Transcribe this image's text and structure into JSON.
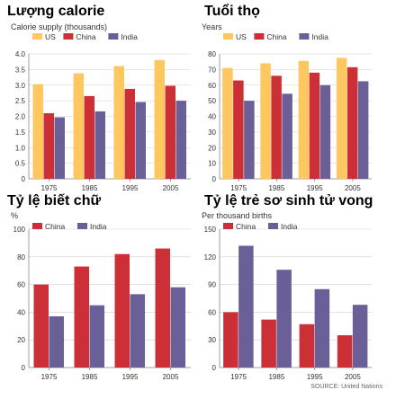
{
  "colors": {
    "US": "#ffc760",
    "China": "#cc2f35",
    "India": "#6a6097"
  },
  "source": "SOURCE: United Nations",
  "chart_data": [
    {
      "type": "bar",
      "title": "Lượng calorie",
      "ylabel": "Calorie supply (thousands)",
      "categories": [
        "1975",
        "1985",
        "1995",
        "2005"
      ],
      "ylim": [
        0,
        4.0
      ],
      "yticks": [
        "0",
        "0.5",
        "1.0",
        "1.5",
        "2.0",
        "2.5",
        "3.0",
        "3.5",
        "4.0"
      ],
      "legend": "top",
      "series": [
        {
          "name": "US",
          "values": [
            3.03,
            3.38,
            3.61,
            3.8
          ]
        },
        {
          "name": "China",
          "values": [
            2.1,
            2.65,
            2.88,
            2.98
          ]
        },
        {
          "name": "India",
          "values": [
            1.97,
            2.16,
            2.46,
            2.5
          ]
        }
      ]
    },
    {
      "type": "bar",
      "title": "Tuổi thọ",
      "ylabel": "Years",
      "categories": [
        "1975",
        "1985",
        "1995",
        "2005"
      ],
      "ylim": [
        0,
        80
      ],
      "yticks": [
        "0",
        "10",
        "20",
        "30",
        "40",
        "50",
        "60",
        "70",
        "80"
      ],
      "legend": "top",
      "series": [
        {
          "name": "US",
          "values": [
            71,
            74,
            75.5,
            77.5
          ]
        },
        {
          "name": "China",
          "values": [
            63,
            66,
            68,
            71.5
          ]
        },
        {
          "name": "India",
          "values": [
            50,
            54.5,
            60,
            62.5
          ]
        }
      ]
    },
    {
      "type": "bar",
      "title": "Tỷ lệ biết chữ",
      "ylabel": "%",
      "categories": [
        "1975",
        "1985",
        "1995",
        "2005"
      ],
      "ylim": [
        0,
        100
      ],
      "yticks": [
        "0",
        "20",
        "40",
        "60",
        "80",
        "100"
      ],
      "legend": "top",
      "series": [
        {
          "name": "China",
          "values": [
            60,
            73,
            82,
            86
          ]
        },
        {
          "name": "India",
          "values": [
            37,
            45,
            53,
            58
          ]
        }
      ]
    },
    {
      "type": "bar",
      "title": "Tỷ lệ trẻ sơ sinh tử vong",
      "ylabel": "Per thousand births",
      "categories": [
        "1975",
        "1985",
        "1995",
        "2005"
      ],
      "ylim": [
        0,
        150
      ],
      "yticks": [
        "0",
        "30",
        "60",
        "90",
        "120",
        "150"
      ],
      "legend": "top",
      "series": [
        {
          "name": "China",
          "values": [
            60,
            52,
            47,
            35
          ]
        },
        {
          "name": "India",
          "values": [
            132,
            106,
            85,
            68
          ]
        }
      ]
    }
  ]
}
